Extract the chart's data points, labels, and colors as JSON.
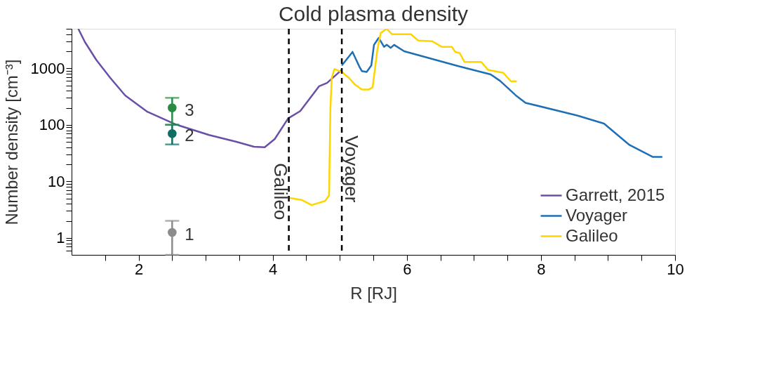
{
  "chart_data": {
    "type": "line",
    "title": "Cold plasma density",
    "xlabel": "R [RJ]",
    "ylabel": "Number density [cm⁻³]",
    "log": "y",
    "xlim": [
      1,
      10
    ],
    "ylim": [
      0.5,
      5000
    ],
    "xticks": [
      {
        "value": 1.5,
        "label": null
      },
      2,
      {
        "value": 2.5,
        "label": null
      },
      {
        "value": 3,
        "label": null
      },
      {
        "value": 3.5,
        "label": null
      },
      4,
      {
        "value": 4.5,
        "label": null
      },
      {
        "value": 5,
        "label": null
      },
      {
        "value": 5.5,
        "label": null
      },
      6,
      {
        "value": 6.5,
        "label": null
      },
      {
        "value": 7,
        "label": null
      },
      {
        "value": 7.5,
        "label": null
      },
      8,
      {
        "value": 8.5,
        "label": null
      },
      {
        "value": 9,
        "label": null
      },
      {
        "value": 9.5,
        "label": null
      },
      10
    ],
    "yticks": [
      {
        "value": 0.6,
        "label": null
      },
      {
        "value": 0.7,
        "label": null
      },
      {
        "value": 0.8,
        "label": null
      },
      {
        "value": 0.9,
        "label": null
      },
      1,
      {
        "value": 2,
        "label": null
      },
      {
        "value": 3,
        "label": null
      },
      {
        "value": 4,
        "label": null
      },
      {
        "value": 5,
        "label": null
      },
      {
        "value": 6,
        "label": null
      },
      {
        "value": 7,
        "label": null
      },
      {
        "value": 8,
        "label": null
      },
      {
        "value": 9,
        "label": null
      },
      10,
      {
        "value": 20,
        "label": null
      },
      {
        "value": 30,
        "label": null
      },
      {
        "value": 40,
        "label": null
      },
      {
        "value": 50,
        "label": null
      },
      {
        "value": 60,
        "label": null
      },
      {
        "value": 70,
        "label": null
      },
      {
        "value": 80,
        "label": null
      },
      {
        "value": 90,
        "label": null
      },
      100,
      {
        "value": 200,
        "label": null
      },
      {
        "value": 300,
        "label": null
      },
      {
        "value": 400,
        "label": null
      },
      {
        "value": 500,
        "label": null
      },
      {
        "value": 600,
        "label": null
      },
      {
        "value": 700,
        "label": null
      },
      {
        "value": 800,
        "label": null
      },
      {
        "value": 900,
        "label": null
      },
      1000,
      {
        "value": 2000,
        "label": null
      },
      {
        "value": 3000,
        "label": null
      },
      {
        "value": 4000,
        "label": null
      },
      {
        "value": 5000,
        "label": null
      }
    ],
    "grid": false,
    "legend": "bottom right",
    "line_style": "solid",
    "marker": "none",
    "series": [
      {
        "name": "Garrett, 2015",
        "color": "#6a4fa8",
        "x": [
          1.1,
          1.2,
          1.37,
          1.58,
          1.8,
          2.13,
          2.55,
          3.05,
          3.46,
          3.72,
          3.88,
          4.03,
          4.23,
          4.41,
          4.69,
          4.81,
          5.03
        ],
        "values": [
          5000,
          2900,
          1400,
          670,
          330,
          170,
          102,
          66,
          50,
          41,
          40,
          56,
          130,
          175,
          480,
          550,
          940
        ]
      },
      {
        "name": "Voyager",
        "color": "#1f6fb4",
        "x": [
          5.03,
          5.19,
          5.29,
          5.33,
          5.4,
          5.47,
          5.51,
          5.58,
          5.66,
          5.7,
          5.76,
          5.81,
          5.96,
          6.77,
          7.25,
          7.39,
          7.64,
          7.77,
          8.54,
          8.94,
          9.32,
          9.67,
          9.81
        ],
        "values": [
          1120,
          1950,
          1080,
          890,
          860,
          1120,
          2600,
          3450,
          2400,
          2600,
          2300,
          2600,
          2000,
          1090,
          780,
          600,
          320,
          245,
          146,
          105,
          44,
          27,
          27
        ]
      },
      {
        "name": "Galileo",
        "color": "#ffd500",
        "x": [
          4.24,
          4.43,
          4.58,
          4.78,
          4.84,
          4.86,
          4.88,
          4.92,
          5.03,
          5.14,
          5.23,
          5.33,
          5.43,
          5.49,
          5.56,
          5.61,
          5.7,
          5.78,
          5.96,
          6.06,
          6.17,
          6.38,
          6.52,
          6.67,
          6.72,
          6.79,
          6.86,
          7.11,
          7.21,
          7.44,
          7.55,
          7.64
        ],
        "values": [
          5.1,
          4.7,
          3.8,
          4.5,
          5.6,
          190,
          670,
          970,
          860,
          670,
          510,
          420,
          420,
          460,
          2100,
          4200,
          5000,
          4000,
          4000,
          4000,
          3100,
          3000,
          2400,
          2400,
          1960,
          1850,
          1290,
          1290,
          940,
          830,
          590,
          590
        ]
      },
      {
        "name": "1",
        "color": "#8c8c8c",
        "type": "scatter",
        "marker": "circle",
        "x": [
          2.5
        ],
        "values": [
          1.25
        ],
        "errors": [
          [
            0.5,
            2
          ]
        ]
      },
      {
        "name": "2",
        "color": "#0f6e64",
        "type": "scatter",
        "marker": "circle",
        "x": [
          2.5
        ],
        "values": [
          70
        ],
        "errors": [
          [
            45,
            100
          ]
        ]
      },
      {
        "name": "3",
        "color": "#2a8a45",
        "type": "scatter",
        "marker": "circle",
        "x": [
          2.5
        ],
        "values": [
          200
        ],
        "errors": [
          [
            100,
            300
          ]
        ]
      }
    ],
    "ref_lines": [
      {
        "axis": "x",
        "value": 4.24,
        "label": "Galileo",
        "color": "#000000",
        "line_style": "dashed"
      },
      {
        "axis": "x",
        "value": 5.03,
        "label": "Voyager",
        "color": "#000000",
        "line_style": "dashed"
      }
    ]
  }
}
